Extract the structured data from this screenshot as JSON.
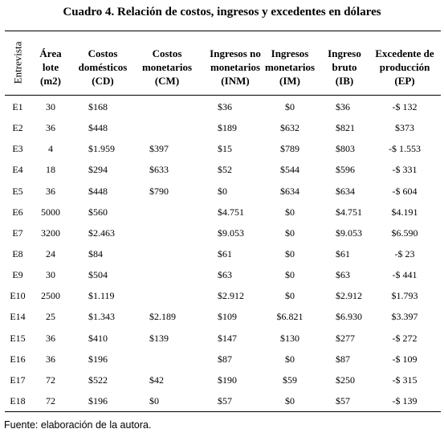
{
  "title": "Cuadro 4. Relación de costos, ingresos y excedentes en dólares",
  "table": {
    "header": [
      [
        "Entrevista"
      ],
      [
        "Área",
        "lote",
        "(m2)"
      ],
      [
        "Costos",
        "domésticos",
        "(CD)"
      ],
      [
        "Costos",
        "monetarios",
        "(CM)"
      ],
      [
        "Ingresos no",
        "monetarios",
        "(INM)"
      ],
      [
        "Ingresos",
        "monetarios",
        "(IM)"
      ],
      [
        "Ingreso",
        "bruto",
        "(IB)"
      ],
      [
        "Excedente de",
        "producción",
        "(EP)"
      ]
    ],
    "rows": [
      [
        "E1",
        "30",
        "$168",
        null,
        "$36",
        "$0",
        "$36",
        "-$ 132"
      ],
      [
        "E2",
        "36",
        "$448",
        null,
        "$189",
        "$632",
        "$821",
        "$373"
      ],
      [
        "E3",
        "4",
        "$1.959",
        "$397",
        "$15",
        "$789",
        "$803",
        "-$ 1.553"
      ],
      [
        "E4",
        "18",
        "$294",
        "$633",
        "$52",
        "$544",
        "$596",
        "-$ 331"
      ],
      [
        "E5",
        "36",
        "$448",
        "$790",
        "$0",
        "$634",
        "$634",
        "-$ 604"
      ],
      [
        "E6",
        "5000",
        "$560",
        null,
        "$4.751",
        "$0",
        "$4.751",
        "$4.191"
      ],
      [
        "E7",
        "3200",
        "$2.463",
        null,
        "$9.053",
        "$0",
        "$9.053",
        "$6.590"
      ],
      [
        "E8",
        "24",
        "$84",
        null,
        "$61",
        "$0",
        "$61",
        "-$ 23"
      ],
      [
        "E9",
        "30",
        "$504",
        null,
        "$63",
        "$0",
        "$63",
        "-$ 441"
      ],
      [
        "E10",
        "2500",
        "$1.119",
        null,
        "$2.912",
        "$0",
        "$2.912",
        "$1.793"
      ],
      [
        "E14",
        "25",
        "$1.343",
        "$2.189",
        "$109",
        "$6.821",
        "$6.930",
        "$3.397"
      ],
      [
        "E15",
        "36",
        "$410",
        "$139",
        "$147",
        "$130",
        "$277",
        "-$ 272"
      ],
      [
        "E16",
        "36",
        "$196",
        null,
        "$87",
        "$0",
        "$87",
        "-$ 109"
      ],
      [
        "E17",
        "72",
        "$522",
        "$42",
        "$190",
        "$59",
        "$250",
        "-$ 315"
      ],
      [
        "E18",
        "72",
        "$196",
        "$0",
        "$57",
        "$0",
        "$57",
        "-$ 139"
      ]
    ]
  },
  "footnote": "Fuente: elaboración de la autora."
}
